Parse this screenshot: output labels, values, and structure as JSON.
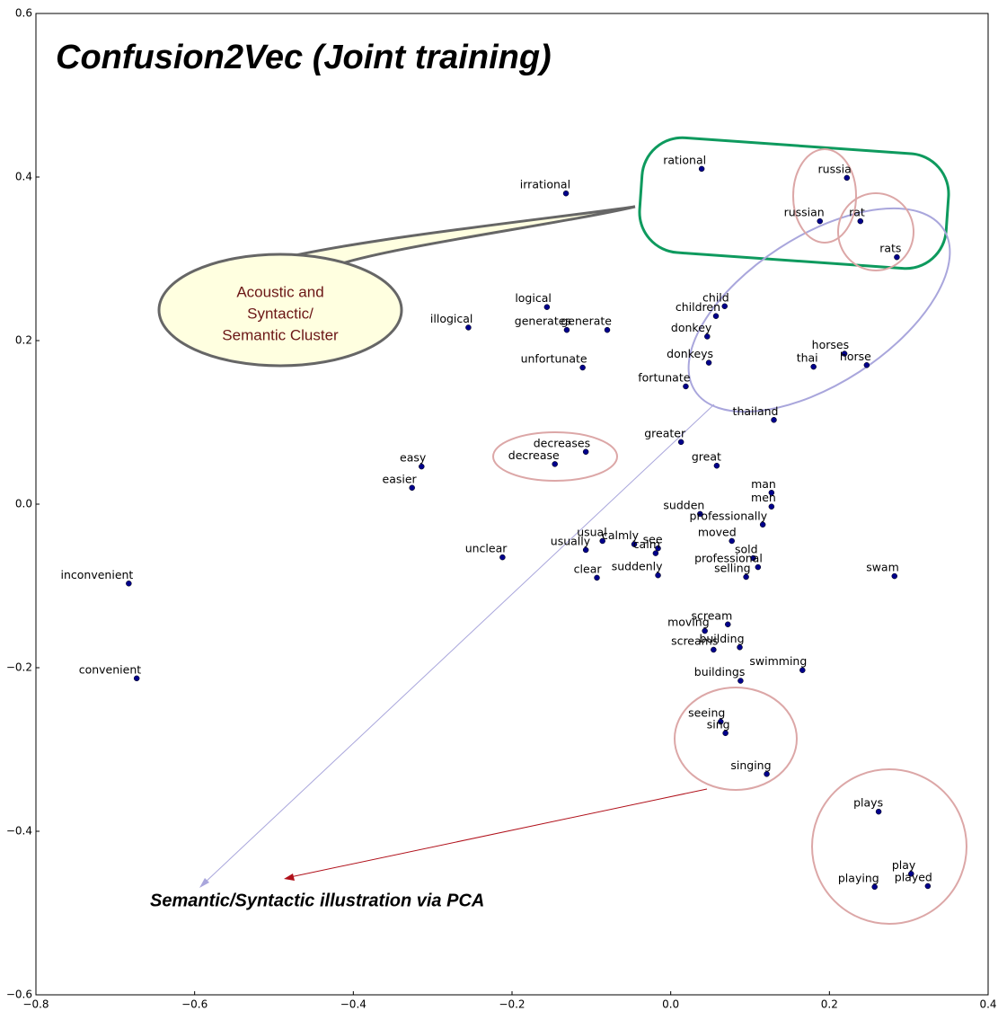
{
  "chart_data": {
    "type": "scatter",
    "title": "Confusion2Vec (Joint training)",
    "annotations": [
      "Acoustic and",
      "Syntactic/",
      "Semantic Cluster",
      "Semantic/Syntactic illustration via PCA"
    ],
    "color": "#00008b",
    "labels": [
      "rational",
      "russia",
      "irrational",
      "russian",
      "rat",
      "rats",
      "logical",
      "child",
      "children",
      "illogical",
      "generates",
      "generate",
      "donkey",
      "horses",
      "donkeys",
      "horse",
      "thai",
      "unfortunate",
      "fortunate",
      "thailand",
      "greater",
      "decreases",
      "great",
      "decrease",
      "easy",
      "easier",
      "man",
      "men",
      "sudden",
      "professionally",
      "usual",
      "moved",
      "calmly",
      "see",
      "usually",
      "calm",
      "sold",
      "unclear",
      "professional",
      "suddenly",
      "selling",
      "swam",
      "clear",
      "inconvenient",
      "scream",
      "moving",
      "building",
      "screams",
      "swimming",
      "convenient",
      "buildings",
      "seeing",
      "sing",
      "singing",
      "plays",
      "play",
      "playing",
      "played"
    ],
    "x": [
      0.039,
      0.222,
      -0.132,
      0.188,
      0.239,
      0.285,
      -0.156,
      0.068,
      0.057,
      -0.255,
      -0.131,
      -0.08,
      0.046,
      0.219,
      0.048,
      0.247,
      0.18,
      -0.111,
      0.019,
      0.13,
      0.013,
      -0.107,
      0.058,
      -0.146,
      -0.314,
      -0.326,
      0.127,
      0.127,
      0.037,
      0.116,
      -0.086,
      0.077,
      -0.046,
      -0.016,
      -0.107,
      -0.019,
      0.104,
      -0.212,
      0.11,
      -0.016,
      0.095,
      0.282,
      -0.093,
      -0.683,
      0.072,
      0.043,
      0.087,
      0.054,
      0.166,
      -0.673,
      0.088,
      0.063,
      0.069,
      0.121,
      0.262,
      0.303,
      0.257,
      0.324
    ],
    "values": [
      0.41,
      0.399,
      0.38,
      0.346,
      0.346,
      0.302,
      0.241,
      0.242,
      0.23,
      0.216,
      0.213,
      0.213,
      0.205,
      0.184,
      0.173,
      0.17,
      0.168,
      0.167,
      0.144,
      0.103,
      0.076,
      0.064,
      0.047,
      0.049,
      0.046,
      0.02,
      0.014,
      -0.003,
      -0.012,
      -0.025,
      -0.045,
      -0.045,
      -0.049,
      -0.054,
      -0.056,
      -0.06,
      -0.066,
      -0.065,
      -0.077,
      -0.087,
      -0.089,
      -0.088,
      -0.09,
      -0.097,
      -0.147,
      -0.155,
      -0.175,
      -0.178,
      -0.203,
      -0.213,
      -0.216,
      -0.266,
      -0.28,
      -0.33,
      -0.376,
      -0.452,
      -0.468,
      -0.467
    ],
    "xlim": [
      -0.8,
      0.4
    ],
    "ylim": [
      -0.6,
      0.6
    ],
    "xticks": [
      {
        "value": -0.8,
        "label": "−0.8"
      },
      {
        "value": -0.6,
        "label": "−0.6"
      },
      {
        "value": -0.4,
        "label": "−0.4"
      },
      {
        "value": -0.2,
        "label": "−0.2"
      },
      {
        "value": 0,
        "label": "0.0"
      },
      0.2,
      0.4
    ],
    "yticks": [
      {
        "value": -0.6,
        "label": "−0.6"
      },
      {
        "value": -0.4,
        "label": "−0.4"
      },
      {
        "value": -0.2,
        "label": "−0.2"
      },
      {
        "value": 0,
        "label": "0.0"
      },
      0.2,
      0.4,
      0.6
    ]
  }
}
